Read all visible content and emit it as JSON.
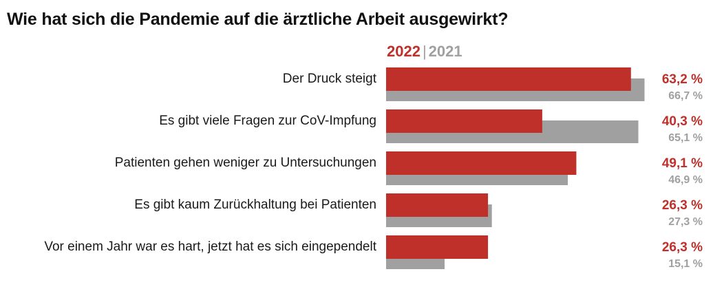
{
  "chart_data": {
    "type": "bar",
    "orientation": "horizontal",
    "title": "Wie hat sich die Pandemie auf die ärztliche Arbeit ausgewirkt?",
    "categories": [
      "Der Druck steigt",
      "Es gibt viele Fragen zur CoV-Impfung",
      "Patienten gehen weniger zu Untersuchungen",
      "Es gibt kaum Zurückhaltung bei Patienten",
      "Vor einem Jahr war es hart, jetzt hat es sich eingependelt"
    ],
    "series": [
      {
        "name": "2022",
        "color": "#c0302b",
        "values": [
          63.2,
          40.3,
          49.1,
          26.3,
          26.3
        ],
        "labels": [
          "63,2 %",
          "40,3 %",
          "49,1 %",
          "26,3 %",
          "26,3 %"
        ]
      },
      {
        "name": "2021",
        "color": "#a0a0a0",
        "values": [
          66.7,
          65.1,
          46.9,
          27.3,
          15.1
        ],
        "labels": [
          "66,7 %",
          "65,1 %",
          "46,9 %",
          "27,3 %",
          "15,1 %"
        ]
      }
    ],
    "legend": {
      "placement": "top-left",
      "separator": "|"
    },
    "xlim": [
      0,
      100
    ],
    "grid": false
  }
}
